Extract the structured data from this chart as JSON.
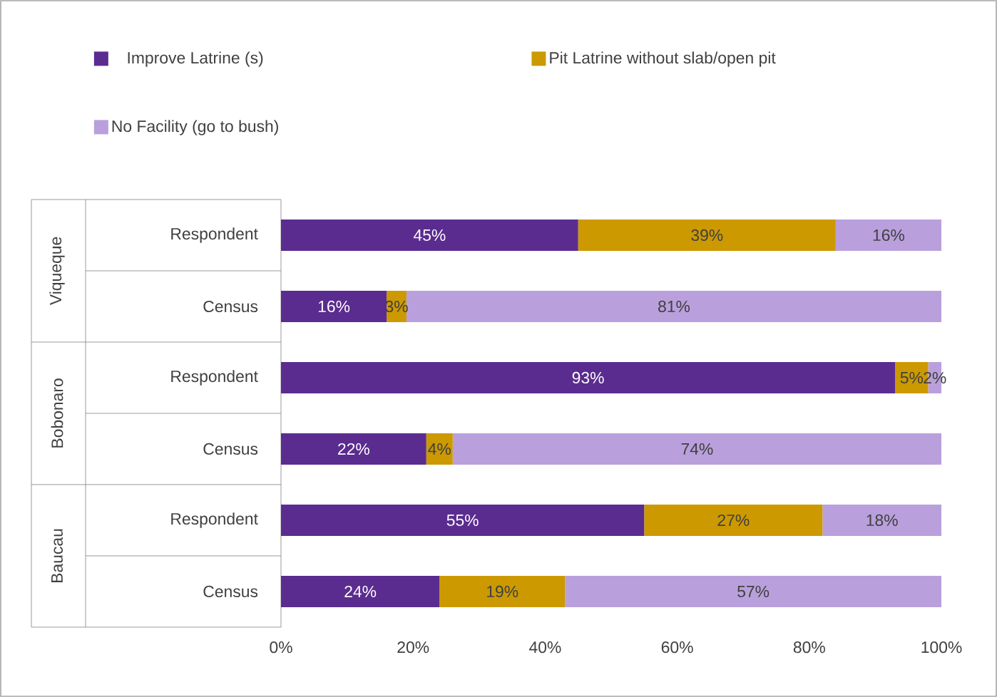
{
  "chart_data": {
    "type": "bar",
    "orientation": "horizontal",
    "stacked": true,
    "legend": "top",
    "categories": [
      "Respondent",
      "Census",
      "Respondent",
      "Census",
      "Respondent",
      "Census"
    ],
    "annotations": [
      "Viqueque",
      "Bobonaro",
      "Baucau"
    ],
    "xlim": [
      0,
      100
    ],
    "xticks": [
      {
        "value": 0,
        "label": "0%"
      },
      {
        "value": 20,
        "label": "20%"
      },
      {
        "value": 40,
        "label": "40%"
      },
      {
        "value": 60,
        "label": "60%"
      },
      {
        "value": 80,
        "label": "80%"
      },
      {
        "value": 100,
        "label": "100%"
      }
    ],
    "series": [
      {
        "name": "Improve Latrine (s)",
        "color": "#5b2c8f",
        "values": [
          45,
          16,
          93,
          22,
          55,
          24
        ],
        "value_labels": [
          "45%",
          "16%",
          "93%",
          "22%",
          "55%",
          "24%"
        ]
      },
      {
        "name": "Pit Latrine without slab/open pit",
        "color": "#cc9900",
        "values": [
          39,
          3,
          5,
          4,
          27,
          19
        ],
        "value_labels": [
          "39%",
          "3%",
          "5%",
          "4%",
          "27%",
          "19%"
        ]
      },
      {
        "name": "No Facility (go to bush)",
        "color": "#b9a0dc",
        "values": [
          16,
          81,
          2,
          74,
          18,
          57
        ],
        "value_labels": [
          "16%",
          "81%",
          "2%",
          "74%",
          "18%",
          "57%"
        ]
      }
    ]
  }
}
